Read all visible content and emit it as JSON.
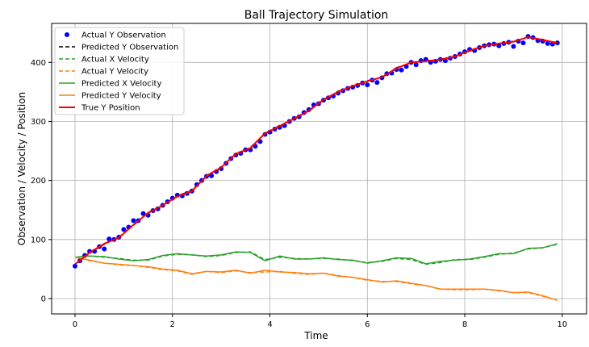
{
  "chart_data": {
    "type": "line",
    "title": "Ball Trajectory Simulation",
    "xlabel": "Time",
    "ylabel": "Observation / Velocity / Position",
    "xlim": [
      -0.48,
      10.5
    ],
    "ylim": [
      -26,
      466
    ],
    "xticks": [
      0,
      2,
      4,
      6,
      8,
      10
    ],
    "yticks": [
      0,
      100,
      200,
      300,
      400
    ],
    "grid": true,
    "legend_position": "top-left",
    "observations": {
      "name": "Actual Y Observation",
      "color": "#0000ff",
      "style": "dots",
      "x_start": 0,
      "x_step": 0.1,
      "values": [
        55,
        64,
        73,
        80,
        80,
        88,
        84,
        101,
        100,
        104,
        117,
        121,
        132,
        132,
        144,
        141,
        149,
        152,
        158,
        164,
        170,
        175,
        174,
        178,
        182,
        193,
        200,
        207,
        208,
        215,
        220,
        229,
        237,
        243,
        246,
        252,
        252,
        258,
        266,
        278,
        282,
        287,
        290,
        293,
        300,
        305,
        308,
        315,
        320,
        328,
        330,
        336,
        340,
        343,
        348,
        352,
        356,
        358,
        361,
        365,
        362,
        370,
        366,
        374,
        381,
        382,
        388,
        387,
        393,
        400,
        396,
        403,
        405,
        400,
        402,
        405,
        403,
        407,
        410,
        414,
        418,
        422,
        420,
        425,
        428,
        430,
        431,
        428,
        432,
        434,
        427,
        436,
        433,
        444,
        442,
        437,
        436,
        432,
        431,
        433
      ]
    },
    "x": [
      0,
      0.3,
      0.6,
      0.9,
      1.2,
      1.5,
      1.8,
      2.1,
      2.4,
      2.7,
      3.0,
      3.3,
      3.6,
      3.9,
      4.2,
      4.5,
      4.8,
      5.1,
      5.4,
      5.7,
      6.0,
      6.3,
      6.6,
      6.9,
      7.2,
      7.5,
      7.8,
      8.1,
      8.4,
      8.7,
      9.0,
      9.3,
      9.6,
      9.9
    ],
    "series": [
      {
        "name": "Predicted Y Observation",
        "color": "#000000",
        "style": "dashed",
        "values": [
          58,
          77,
          92,
          104,
          124,
          146,
          157,
          174,
          183,
          207,
          223,
          244,
          256,
          279,
          293,
          304,
          319,
          336,
          351,
          359,
          369,
          374,
          391,
          399,
          403,
          404,
          411,
          419,
          429,
          431,
          436,
          442,
          439,
          432
        ]
      },
      {
        "name": "Actual X Velocity",
        "color": "#2ca02c",
        "style": "dashed",
        "values": [
          70,
          72,
          70,
          68,
          65,
          65,
          72,
          75,
          74,
          71,
          73,
          78,
          79,
          66,
          70,
          68,
          67,
          68,
          67,
          64,
          61,
          63,
          68,
          66,
          58,
          61,
          66,
          66,
          70,
          75,
          77,
          84,
          86,
          92
        ]
      },
      {
        "name": "Actual Y Velocity",
        "color": "#ff7f0e",
        "style": "dashed",
        "values": [
          70,
          64,
          60,
          57,
          56,
          53,
          49,
          47,
          41,
          46,
          44,
          47,
          44,
          45,
          46,
          43,
          41,
          43,
          39,
          36,
          31,
          29,
          29,
          25,
          22,
          16,
          15,
          15,
          16,
          13,
          10,
          10,
          4,
          -3
        ]
      },
      {
        "name": "Predicted X Velocity",
        "color": "#2ca02c",
        "style": "solid",
        "values": [
          70,
          72,
          71,
          67,
          64,
          66,
          73,
          76,
          74,
          72,
          74,
          79,
          78,
          64,
          72,
          67,
          67,
          69,
          66,
          65,
          60,
          64,
          69,
          68,
          59,
          63,
          65,
          67,
          71,
          76,
          76,
          85,
          86,
          93
        ]
      },
      {
        "name": "Predicted Y Velocity",
        "color": "#ff7f0e",
        "style": "solid",
        "values": [
          70,
          65,
          60,
          58,
          56,
          54,
          50,
          48,
          42,
          46,
          45,
          48,
          43,
          48,
          45,
          44,
          42,
          43,
          38,
          36,
          32,
          28,
          30,
          26,
          22,
          16,
          16,
          16,
          16,
          14,
          10,
          11,
          5,
          -3
        ]
      },
      {
        "name": "True Y Position",
        "color": "#ff0000",
        "style": "solid-thick",
        "values": [
          58,
          78,
          93,
          103,
          125,
          145,
          158,
          173,
          182,
          208,
          222,
          245,
          255,
          280,
          292,
          305,
          318,
          337,
          350,
          360,
          368,
          375,
          390,
          400,
          402,
          405,
          410,
          420,
          428,
          432,
          435,
          443,
          438,
          433
        ]
      }
    ]
  }
}
